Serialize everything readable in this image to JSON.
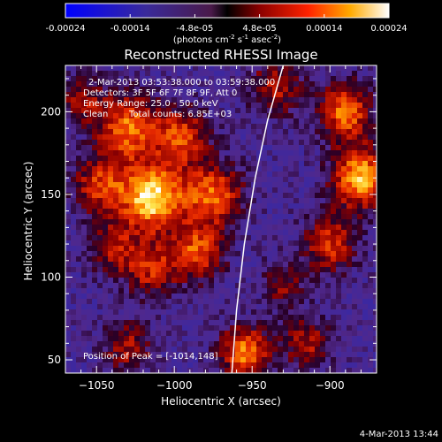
{
  "chart_data": {
    "type": "heatmap",
    "title": "Reconstructed RHESSI Image",
    "xlabel": "Heliocentric X (arcsec)",
    "ylabel": "Heliocentric Y (arcsec)",
    "xlim": [
      -1070,
      -870
    ],
    "ylim": [
      42,
      228
    ],
    "xticks": [
      -1050,
      -1000,
      -950,
      -900
    ],
    "yticks": [
      50,
      100,
      150,
      200
    ],
    "colorbar": {
      "ticks": [
        "-0.00024",
        "-0.00014",
        "-4.8e-05",
        "4.8e-05",
        "0.00014",
        "0.00024"
      ],
      "unit_label": "(photons cm",
      "unit_sup1": "-2",
      "unit_mid": " s",
      "unit_sup2": "-1",
      "unit_end": " asec",
      "unit_sup3": "-2",
      "unit_close": ")",
      "range": [
        -0.00024,
        0.00024
      ]
    },
    "annotations": {
      "time": "2-Mar-2013 03:53:38.000 to 03:59:38.000",
      "detectors": "Detectors: 3F 5F 6F 7F 8F 9F, Att 0",
      "energy": "Energy Range: 25.0 - 50.0 keV",
      "method": "Clean",
      "counts": "Total counts: 6.85E+03",
      "peak": "Position of Peak = [-1014,148]"
    },
    "peak": [
      -1014,
      148
    ],
    "sources": [
      {
        "x": -1014,
        "y": 148,
        "strength": 1.0,
        "radius": 14
      },
      {
        "x": -1030,
        "y": 190,
        "strength": 0.72,
        "radius": 14
      },
      {
        "x": -995,
        "y": 185,
        "strength": 0.6,
        "radius": 12
      },
      {
        "x": -1048,
        "y": 155,
        "strength": 0.55,
        "radius": 12
      },
      {
        "x": -975,
        "y": 150,
        "strength": 0.68,
        "radius": 13
      },
      {
        "x": -985,
        "y": 115,
        "strength": 0.62,
        "radius": 12
      },
      {
        "x": -1040,
        "y": 118,
        "strength": 0.45,
        "radius": 11
      },
      {
        "x": -1015,
        "y": 105,
        "strength": 0.5,
        "radius": 12
      },
      {
        "x": -880,
        "y": 160,
        "strength": 0.85,
        "radius": 13
      },
      {
        "x": -890,
        "y": 200,
        "strength": 0.7,
        "radius": 12
      },
      {
        "x": -900,
        "y": 120,
        "strength": 0.55,
        "radius": 12
      },
      {
        "x": -935,
        "y": 215,
        "strength": 0.45,
        "radius": 12
      },
      {
        "x": -955,
        "y": 55,
        "strength": 0.75,
        "radius": 11
      },
      {
        "x": -1030,
        "y": 58,
        "strength": 0.45,
        "radius": 11
      },
      {
        "x": -915,
        "y": 60,
        "strength": 0.45,
        "radius": 11
      },
      {
        "x": -930,
        "y": 95,
        "strength": 0.35,
        "radius": 10
      },
      {
        "x": -1060,
        "y": 208,
        "strength": 0.4,
        "radius": 10
      }
    ],
    "limb_curve": [
      [
        -963,
        42
      ],
      [
        -960,
        80
      ],
      [
        -955,
        120
      ],
      [
        -948,
        160
      ],
      [
        -940,
        195
      ],
      [
        -930,
        228
      ]
    ]
  },
  "footer": {
    "date": "4-Mar-2013 13:44"
  }
}
